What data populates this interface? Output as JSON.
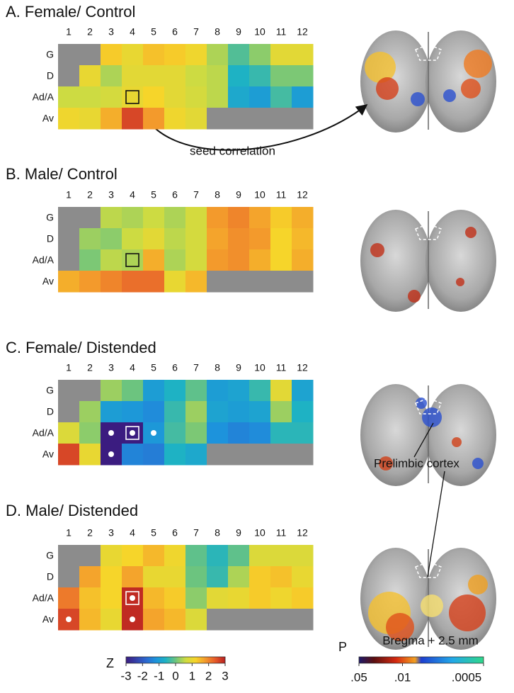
{
  "chart_data": [
    {
      "type": "heatmap",
      "title": "A. Female/ Control",
      "x": [
        "1",
        "2",
        "3",
        "4",
        "5",
        "6",
        "7",
        "8",
        "9",
        "10",
        "11",
        "12"
      ],
      "y": [
        "G",
        "D",
        "Ad/A",
        "Av"
      ],
      "values": [
        [
          null,
          null,
          1.3,
          1.0,
          1.4,
          1.3,
          1.1,
          0.4,
          -0.2,
          0.2,
          0.9,
          0.9
        ],
        [
          null,
          1.0,
          0.4,
          0.9,
          0.9,
          0.9,
          0.6,
          0.5,
          -0.6,
          -0.4,
          0.1,
          0.1
        ],
        [
          0.6,
          0.6,
          0.7,
          1.0,
          1.2,
          0.9,
          0.7,
          0.5,
          -0.8,
          -1.0,
          -0.3,
          -1.0
        ],
        [
          1.1,
          1.0,
          1.6,
          2.6,
          1.8,
          1.1,
          0.9,
          null,
          null,
          null,
          null,
          null
        ]
      ],
      "seed": {
        "row": "Ad/A",
        "column": "4"
      },
      "seed_color": "#111111",
      "significant": []
    },
    {
      "type": "heatmap",
      "title": "B. Male/ Control",
      "x": [
        "1",
        "2",
        "3",
        "4",
        "5",
        "6",
        "7",
        "8",
        "9",
        "10",
        "11",
        "12"
      ],
      "y": [
        "G",
        "D",
        "Ad/A",
        "Av"
      ],
      "values": [
        [
          null,
          null,
          0.5,
          0.4,
          0.6,
          0.4,
          0.7,
          1.8,
          2.0,
          1.7,
          1.3,
          1.6
        ],
        [
          null,
          0.3,
          0.2,
          0.6,
          0.9,
          0.5,
          0.7,
          1.7,
          1.9,
          1.8,
          1.2,
          1.5
        ],
        [
          null,
          0.1,
          0.5,
          0.4,
          1.6,
          0.4,
          0.7,
          1.8,
          1.9,
          1.6,
          1.2,
          1.6
        ],
        [
          1.6,
          1.8,
          2.0,
          2.2,
          2.2,
          1.0,
          1.5,
          null,
          null,
          null,
          null,
          null
        ]
      ],
      "seed": {
        "row": "Ad/A",
        "column": "4"
      },
      "seed_color": "#111111",
      "significant": []
    },
    {
      "type": "heatmap",
      "title": "C. Female/ Distended",
      "x": [
        "1",
        "2",
        "3",
        "4",
        "5",
        "6",
        "7",
        "8",
        "9",
        "10",
        "11",
        "12"
      ],
      "y": [
        "G",
        "D",
        "Ad/A",
        "Av"
      ],
      "values": [
        [
          null,
          null,
          0.3,
          0.0,
          -1.0,
          -0.6,
          -0.1,
          -1.0,
          -0.9,
          -0.4,
          0.9,
          -0.9
        ],
        [
          null,
          0.3,
          -1.0,
          -1.1,
          -1.3,
          -0.4,
          0.3,
          -0.9,
          -1.0,
          -0.9,
          0.3,
          -0.6
        ],
        [
          0.8,
          0.2,
          -3.0,
          -3.0,
          -1.1,
          -0.3,
          0.1,
          -1.2,
          -1.4,
          -1.3,
          -0.5,
          -0.5
        ],
        [
          2.6,
          1.0,
          -3.0,
          -1.4,
          -1.5,
          -0.6,
          -0.8,
          null,
          null,
          null,
          null,
          null
        ]
      ],
      "seed": {
        "row": "Ad/A",
        "column": "4"
      },
      "seed_color": "#ffffff",
      "significant": [
        {
          "row": "Ad/A",
          "column": "3"
        },
        {
          "row": "Ad/A",
          "column": "4"
        },
        {
          "row": "Ad/A",
          "column": "5"
        },
        {
          "row": "Av",
          "column": "3"
        }
      ]
    },
    {
      "type": "heatmap",
      "title": "D. Male/ Distended",
      "x": [
        "1",
        "2",
        "3",
        "4",
        "5",
        "6",
        "7",
        "8",
        "9",
        "10",
        "11",
        "12"
      ],
      "y": [
        "G",
        "D",
        "Ad/A",
        "Av"
      ],
      "values": [
        [
          null,
          null,
          1.0,
          1.2,
          1.5,
          1.1,
          -0.1,
          -0.5,
          -0.1,
          0.8,
          0.8,
          0.8
        ],
        [
          null,
          1.7,
          1.2,
          1.7,
          1.0,
          1.0,
          0.0,
          -0.4,
          0.4,
          1.3,
          1.4,
          1.0
        ],
        [
          2.1,
          1.4,
          1.2,
          2.9,
          1.5,
          1.3,
          0.2,
          0.9,
          1.0,
          1.3,
          1.1,
          1.3
        ],
        [
          2.6,
          1.5,
          1.0,
          2.9,
          1.7,
          1.5,
          0.8,
          null,
          null,
          null,
          null,
          null
        ]
      ],
      "seed": {
        "row": "Ad/A",
        "column": "4"
      },
      "seed_color": "#ffffff",
      "significant": [
        {
          "row": "Ad/A",
          "column": "4"
        },
        {
          "row": "Av",
          "column": "1"
        },
        {
          "row": "Av",
          "column": "4"
        }
      ]
    }
  ],
  "null_color": "#8c8c8c",
  "z_colorbar": {
    "label": "Z",
    "zlim": [
      -3,
      3
    ],
    "ticks": [
      -3,
      -2,
      -1,
      0,
      1,
      2,
      3
    ],
    "colorscale": [
      "#3b1c80",
      "#3540a8",
      "#2c67cf",
      "#1d93dc",
      "#1eb2c4",
      "#6cc47f",
      "#cddb42",
      "#f6d52a",
      "#f39a2c",
      "#e65a2a",
      "#b82020"
    ]
  },
  "p_colorbar": {
    "label": "P",
    "log": true,
    "ticks": [
      {
        "value": 0.05,
        "label": ".05"
      },
      {
        "value": 0.01,
        "label": ".01"
      },
      {
        "value": 0.0005,
        "label": ".0005"
      }
    ]
  },
  "annotations": {
    "seed": "seed correlation",
    "region": "Prelimbic cortex",
    "bregma": "Bregma + 2.5 mm"
  }
}
